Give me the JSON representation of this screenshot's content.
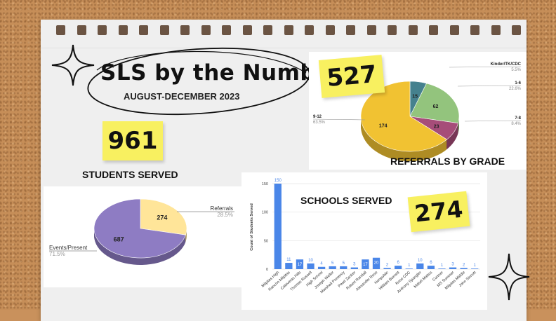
{
  "header": {
    "title": "SLS by the Numbers",
    "subtitle": "AUGUST-DECEMBER 2023"
  },
  "stats": {
    "students_served_value": "961",
    "students_served_label": "STUDENTS SERVED",
    "referrals_value": "527",
    "schools_served_value": "274"
  },
  "colors": {
    "sticky": "#f8f060",
    "bar": "#4a86e8",
    "pie_purple": "#8e7cc3",
    "pie_cream": "#ffe599",
    "pie_teal": "#45818e",
    "pie_green": "#93c47d",
    "pie_magenta": "#a64d79",
    "pie_gold": "#f1c232"
  },
  "chart_data": [
    {
      "type": "pie",
      "title": "REFERRALS BY GRADE",
      "labels": [
        "Kinder/TK/CDC",
        "1-6",
        "7-8",
        "9-12"
      ],
      "values": [
        15,
        62,
        23,
        174
      ],
      "percents": [
        "5.5%",
        "22.6%",
        "8.4%",
        "63.5%"
      ]
    },
    {
      "type": "pie",
      "title": "",
      "labels": [
        "Referrals",
        "Events/Present"
      ],
      "values": [
        274,
        687
      ],
      "percents": [
        "28.5%",
        "71.5%"
      ]
    },
    {
      "type": "bar",
      "title": "SCHOOLS SERVED",
      "ylabel": "Count of Students Served",
      "ylim": [
        0,
        150
      ],
      "yticks": [
        0,
        50,
        100,
        150
      ],
      "categories": [
        "Milpitas High",
        "Rancho Milpitas",
        "Calaveras Hills",
        "Thomas Russell",
        "High School",
        "Joseph Weller",
        "Marshall Pomeroy",
        "Pearl Zanker",
        "Robert Randall",
        "Alexander Rose",
        "Nonpublic",
        "William Burnett",
        "Rose CDC",
        "Anthony Spangler",
        "Mabel Mattos",
        "Curtner",
        "MS Summer",
        "Milpitas Middle",
        "John Sinnott"
      ],
      "values": [
        150,
        11,
        17,
        10,
        4,
        5,
        5,
        3,
        17,
        20,
        2,
        6,
        1,
        10,
        6,
        1,
        3,
        2,
        1
      ]
    }
  ]
}
